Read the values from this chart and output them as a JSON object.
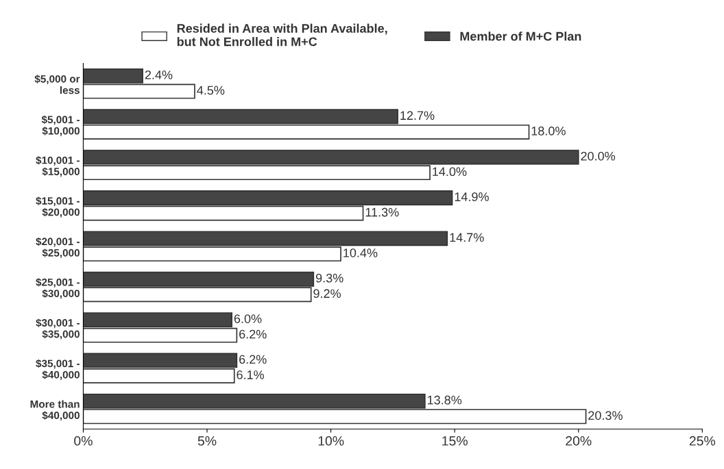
{
  "chart_data": {
    "type": "bar",
    "orientation": "horizontal",
    "categories": [
      "$5,000 or\nless",
      "$5,001 -\n$10,000",
      "$10,001 -\n$15,000",
      "$15,001 -\n$20,000",
      "$20,001 -\n$25,000",
      "$25,001 -\n$30,000",
      "$30,001 -\n$35,000",
      "$35,001 -\n$40,000",
      "More than\n$40,000"
    ],
    "series": [
      {
        "name": "Member of M+C Plan",
        "color": "#454545",
        "values": [
          2.4,
          12.7,
          20.0,
          14.9,
          14.7,
          9.3,
          6.0,
          6.2,
          13.8
        ],
        "value_labels": [
          "2.4%",
          "12.7%",
          "20.0%",
          "14.9%",
          "14.7%",
          "9.3%",
          "6.0%",
          "6.2%",
          "13.8%"
        ]
      },
      {
        "name": "Resided in Area with Plan Available,\nbut Not Enrolled in M+C",
        "color": "#ffffff",
        "values": [
          4.5,
          18.0,
          14.0,
          11.3,
          10.4,
          9.2,
          6.2,
          6.1,
          20.3
        ],
        "value_labels": [
          "4.5%",
          "18.0%",
          "14.0%",
          "11.3%",
          "10.4%",
          "9.2%",
          "6.2%",
          "6.1%",
          "20.3%"
        ]
      }
    ],
    "xlim": [
      0,
      25
    ],
    "xticks": [
      {
        "value": 0,
        "label": "0%"
      },
      {
        "value": 5,
        "label": "5%"
      },
      {
        "value": 10,
        "label": "10%"
      },
      {
        "value": 15,
        "label": "15%"
      },
      {
        "value": 20,
        "label": "20%"
      },
      {
        "value": 25,
        "label": "25%"
      }
    ],
    "legend": "top",
    "grid": false
  }
}
